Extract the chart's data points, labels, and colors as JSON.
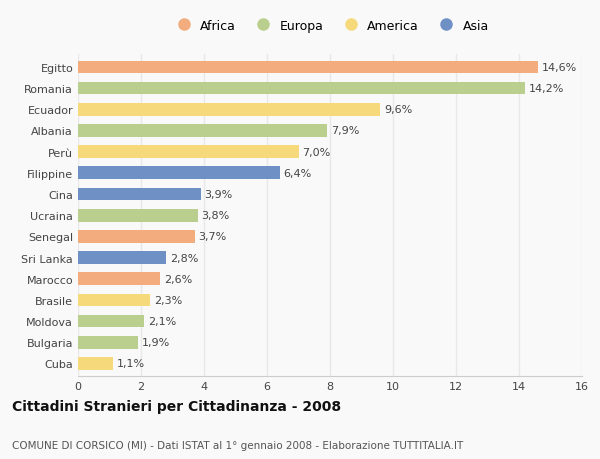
{
  "countries": [
    "Egitto",
    "Romania",
    "Ecuador",
    "Albania",
    "Perù",
    "Filippine",
    "Cina",
    "Ucraina",
    "Senegal",
    "Sri Lanka",
    "Marocco",
    "Brasile",
    "Moldova",
    "Bulgaria",
    "Cuba"
  ],
  "values": [
    14.6,
    14.2,
    9.6,
    7.9,
    7.0,
    6.4,
    3.9,
    3.8,
    3.7,
    2.8,
    2.6,
    2.3,
    2.1,
    1.9,
    1.1
  ],
  "continents": [
    "Africa",
    "Europa",
    "America",
    "Europa",
    "America",
    "Asia",
    "Asia",
    "Europa",
    "Africa",
    "Asia",
    "Africa",
    "America",
    "Europa",
    "Europa",
    "America"
  ],
  "colors": {
    "Africa": "#F2AC7E",
    "Europa": "#BACF8E",
    "America": "#F5D97A",
    "Asia": "#6E90C4"
  },
  "legend_order": [
    "Africa",
    "Europa",
    "America",
    "Asia"
  ],
  "xlim": [
    0,
    16
  ],
  "xticks": [
    0,
    2,
    4,
    6,
    8,
    10,
    12,
    14,
    16
  ],
  "title": "Cittadini Stranieri per Cittadinanza - 2008",
  "subtitle": "COMUNE DI CORSICO (MI) - Dati ISTAT al 1° gennaio 2008 - Elaborazione TUTTITALIA.IT",
  "background_color": "#f9f9f9",
  "bar_height": 0.6,
  "label_fontsize": 8,
  "title_fontsize": 10,
  "subtitle_fontsize": 7.5,
  "tick_fontsize": 8,
  "legend_fontsize": 9,
  "grid_color": "#e8e8e8"
}
